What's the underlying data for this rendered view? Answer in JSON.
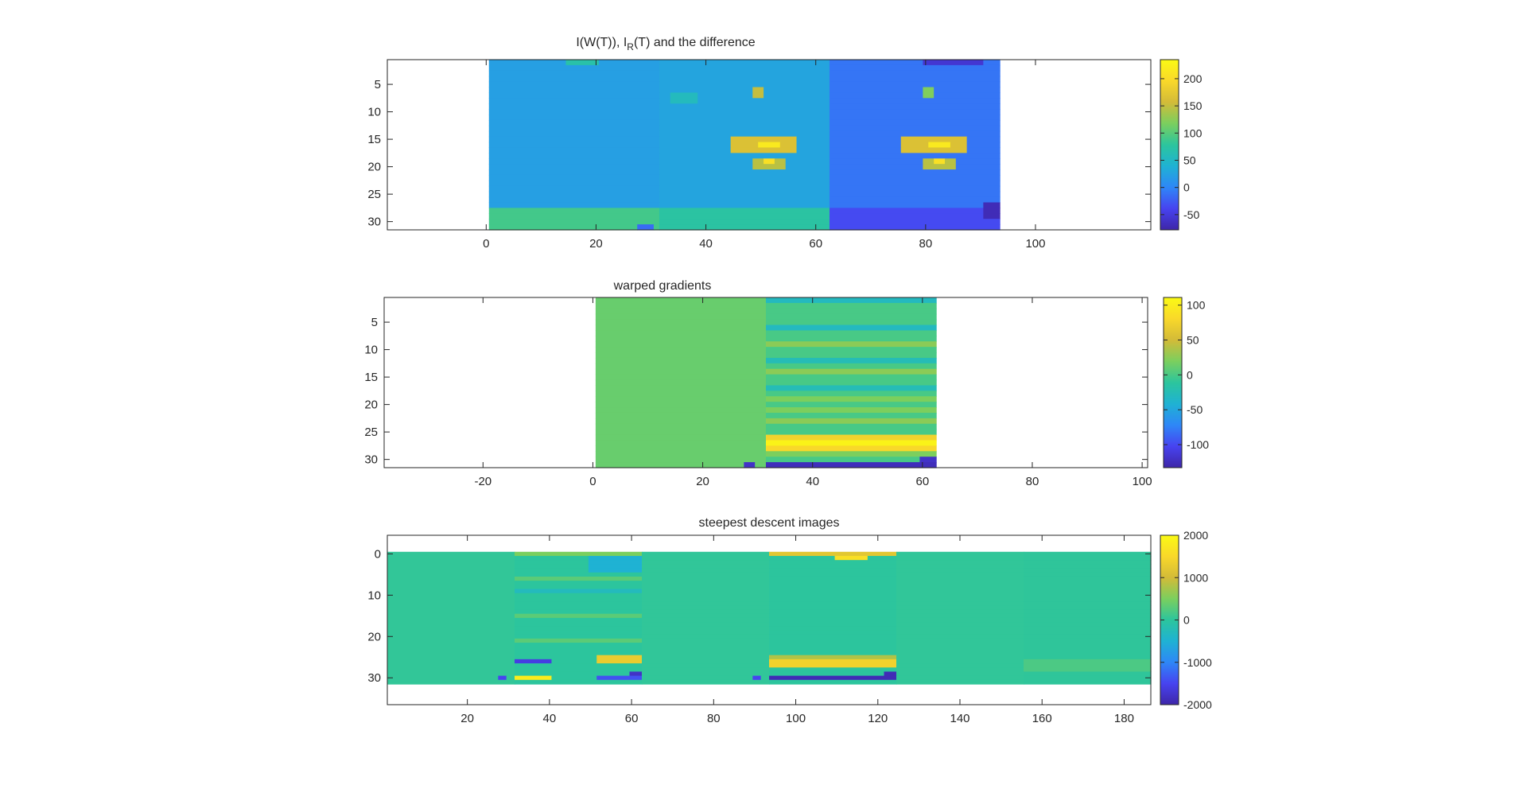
{
  "colors": {
    "colormap": [
      "#3e26a8",
      "#4743f0",
      "#2e87f7",
      "#1fb2d3",
      "#2cc59d",
      "#7bcf5e",
      "#d3bb38",
      "#f9d82a",
      "#fafa14"
    ],
    "axes": "#262626",
    "background": "#ffffff"
  },
  "chart_data": [
    {
      "type": "heatmap",
      "title": "I(W(T)), I_R(T) and the difference",
      "title_parts": {
        "pre": "I(W(T)), I",
        "sub": "R",
        "post": "(T) and the difference"
      },
      "xlim": [
        -18,
        121
      ],
      "ylim": [
        0.5,
        31.5
      ],
      "y_reversed": true,
      "x_ticks": [
        0,
        20,
        40,
        60,
        80,
        100
      ],
      "y_ticks": [
        5,
        10,
        15,
        20,
        25,
        30
      ],
      "image": {
        "x_range": [
          1,
          93
        ],
        "y_range": [
          1,
          31
        ]
      },
      "colorbar": {
        "range": [
          -78,
          235
        ],
        "ticks": [
          -50,
          0,
          50,
          100,
          150,
          200
        ]
      },
      "blocks": [
        {
          "x": [
            1,
            31
          ],
          "base": 22
        },
        {
          "x": [
            32,
            62
          ],
          "base": 27
        },
        {
          "x": [
            63,
            93
          ],
          "base": -10
        }
      ],
      "features": [
        {
          "x": [
            1,
            31
          ],
          "y": [
            28,
            31
          ],
          "value": 90
        },
        {
          "x": [
            32,
            62
          ],
          "y": [
            28,
            31
          ],
          "value": 75
        },
        {
          "x": [
            63,
            93
          ],
          "y": [
            28,
            31
          ],
          "value": -35
        },
        {
          "x": [
            91,
            93
          ],
          "y": [
            27,
            29
          ],
          "value": -70
        },
        {
          "x": [
            28,
            30
          ],
          "y": [
            31,
            31
          ],
          "value": -15
        },
        {
          "x": [
            45,
            56
          ],
          "y": [
            15,
            17
          ],
          "value": 165
        },
        {
          "x": [
            50,
            53
          ],
          "y": [
            16,
            16
          ],
          "value": 215
        },
        {
          "x": [
            49,
            54
          ],
          "y": [
            19,
            20
          ],
          "value": 145
        },
        {
          "x": [
            51,
            52
          ],
          "y": [
            19,
            19
          ],
          "value": 205
        },
        {
          "x": [
            76,
            87
          ],
          "y": [
            15,
            17
          ],
          "value": 165
        },
        {
          "x": [
            81,
            84
          ],
          "y": [
            16,
            16
          ],
          "value": 215
        },
        {
          "x": [
            80,
            85
          ],
          "y": [
            19,
            20
          ],
          "value": 145
        },
        {
          "x": [
            82,
            83
          ],
          "y": [
            19,
            19
          ],
          "value": 205
        },
        {
          "x": [
            49,
            50
          ],
          "y": [
            6,
            7
          ],
          "value": 150
        },
        {
          "x": [
            80,
            81
          ],
          "y": [
            6,
            7
          ],
          "value": 120
        },
        {
          "x": [
            34,
            38
          ],
          "y": [
            7,
            8
          ],
          "value": 55
        },
        {
          "x": [
            15,
            20
          ],
          "y": [
            1,
            1
          ],
          "value": 70
        },
        {
          "x": [
            80,
            90
          ],
          "y": [
            1,
            1
          ],
          "value": -55
        }
      ]
    },
    {
      "type": "heatmap",
      "title": "warped gradients",
      "xlim": [
        -38,
        101
      ],
      "ylim": [
        0.5,
        31.5
      ],
      "y_reversed": true,
      "x_ticks": [
        -20,
        0,
        20,
        40,
        60,
        80,
        100
      ],
      "y_ticks": [
        5,
        10,
        15,
        20,
        25,
        30
      ],
      "image": {
        "x_range": [
          1,
          62
        ],
        "y_range": [
          1,
          31
        ]
      },
      "colorbar": {
        "range": [
          -133,
          111
        ],
        "ticks": [
          -100,
          -50,
          0,
          50,
          100
        ]
      },
      "blocks": [
        {
          "x": [
            1,
            31
          ],
          "base": 12
        },
        {
          "x": [
            32,
            62
          ],
          "base": 0
        }
      ],
      "features": [
        {
          "x": [
            32,
            62
          ],
          "y": [
            26,
            26
          ],
          "value": 75
        },
        {
          "x": [
            32,
            62
          ],
          "y": [
            27,
            27
          ],
          "value": 105
        },
        {
          "x": [
            32,
            62
          ],
          "y": [
            28,
            28
          ],
          "value": 80
        },
        {
          "x": [
            32,
            62
          ],
          "y": [
            29,
            29
          ],
          "value": 20
        },
        {
          "x": [
            32,
            62
          ],
          "y": [
            31,
            31
          ],
          "value": -125
        },
        {
          "x": [
            60,
            62
          ],
          "y": [
            30,
            30
          ],
          "value": -120
        },
        {
          "x": [
            28,
            29
          ],
          "y": [
            31,
            31
          ],
          "value": -120
        },
        {
          "x": [
            32,
            62
          ],
          "y": [
            1,
            1
          ],
          "value": -30
        },
        {
          "x": [
            32,
            62
          ],
          "y": [
            6,
            6
          ],
          "value": -30
        },
        {
          "x": [
            32,
            62
          ],
          "y": [
            9,
            9
          ],
          "value": 25
        },
        {
          "x": [
            32,
            62
          ],
          "y": [
            12,
            12
          ],
          "value": -25
        },
        {
          "x": [
            32,
            62
          ],
          "y": [
            14,
            14
          ],
          "value": 25
        },
        {
          "x": [
            32,
            62
          ],
          "y": [
            17,
            17
          ],
          "value": -25
        },
        {
          "x": [
            32,
            62
          ],
          "y": [
            19,
            19
          ],
          "value": 20
        },
        {
          "x": [
            32,
            62
          ],
          "y": [
            21,
            21
          ],
          "value": 20
        },
        {
          "x": [
            32,
            62
          ],
          "y": [
            23,
            23
          ],
          "value": 25
        }
      ]
    },
    {
      "type": "heatmap",
      "title": "steepest descent images",
      "xlim": [
        0.5,
        186.5
      ],
      "ylim": [
        -4.5,
        36.5
      ],
      "y_reversed": true,
      "x_ticks": [
        20,
        40,
        60,
        80,
        100,
        120,
        140,
        160,
        180
      ],
      "y_ticks": [
        0,
        10,
        20,
        30
      ],
      "image": {
        "x_range": [
          1,
          186
        ],
        "y_range": [
          0,
          31
        ]
      },
      "colorbar": {
        "range": [
          -2000,
          2000
        ],
        "ticks": [
          -2000,
          -1000,
          0,
          1000,
          2000
        ]
      },
      "blocks": [
        {
          "x": [
            1,
            31
          ],
          "base": 40
        },
        {
          "x": [
            32,
            62
          ],
          "base": 0
        },
        {
          "x": [
            63,
            93
          ],
          "base": 30
        },
        {
          "x": [
            94,
            124
          ],
          "base": 0
        },
        {
          "x": [
            125,
            155
          ],
          "base": 30
        },
        {
          "x": [
            156,
            186
          ],
          "base": 20
        }
      ],
      "features": [
        {
          "x": [
            32,
            62
          ],
          "y": [
            0,
            0
          ],
          "value": 500
        },
        {
          "x": [
            32,
            62
          ],
          "y": [
            6,
            6
          ],
          "value": 300
        },
        {
          "x": [
            32,
            62
          ],
          "y": [
            9,
            9
          ],
          "value": -300
        },
        {
          "x": [
            32,
            62
          ],
          "y": [
            15,
            15
          ],
          "value": 300
        },
        {
          "x": [
            32,
            62
          ],
          "y": [
            21,
            21
          ],
          "value": 300
        },
        {
          "x": [
            32,
            40
          ],
          "y": [
            26,
            26
          ],
          "value": -1600
        },
        {
          "x": [
            32,
            40
          ],
          "y": [
            30,
            30
          ],
          "value": 1800
        },
        {
          "x": [
            52,
            62
          ],
          "y": [
            25,
            26
          ],
          "value": 1300
        },
        {
          "x": [
            52,
            62
          ],
          "y": [
            30,
            30
          ],
          "value": -1400
        },
        {
          "x": [
            60,
            62
          ],
          "y": [
            29,
            29
          ],
          "value": -1800
        },
        {
          "x": [
            50,
            62
          ],
          "y": [
            1,
            4
          ],
          "value": -500
        },
        {
          "x": [
            94,
            124
          ],
          "y": [
            26,
            27
          ],
          "value": 1400
        },
        {
          "x": [
            94,
            124
          ],
          "y": [
            25,
            25
          ],
          "value": 800
        },
        {
          "x": [
            94,
            124
          ],
          "y": [
            30,
            30
          ],
          "value": -1900
        },
        {
          "x": [
            122,
            124
          ],
          "y": [
            29,
            29
          ],
          "value": -1900
        },
        {
          "x": [
            94,
            124
          ],
          "y": [
            0,
            0
          ],
          "value": 1200
        },
        {
          "x": [
            110,
            117
          ],
          "y": [
            1,
            1
          ],
          "value": 1600
        },
        {
          "x": [
            28,
            29
          ],
          "y": [
            30,
            30
          ],
          "value": -1500
        },
        {
          "x": [
            90,
            91
          ],
          "y": [
            30,
            30
          ],
          "value": -1500
        },
        {
          "x": [
            156,
            186
          ],
          "y": [
            26,
            28
          ],
          "value": 200
        }
      ]
    }
  ]
}
